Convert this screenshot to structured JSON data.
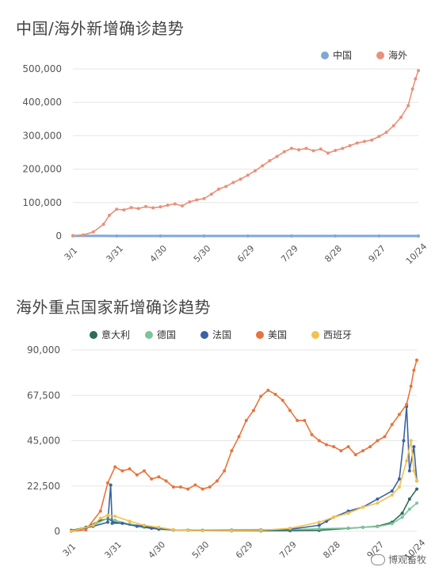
{
  "chart_data": [
    {
      "type": "line",
      "title": "中国/海外新增确诊趋势",
      "x_tick_labels": [
        "3/1",
        "3/31",
        "4/30",
        "5/30",
        "6/29",
        "7/29",
        "8/28",
        "9/27",
        "10/24"
      ],
      "x_tick_days": [
        0,
        30,
        60,
        90,
        120,
        150,
        180,
        210,
        237
      ],
      "y_tick_labels": [
        "0",
        "100,000",
        "200,000",
        "300,000",
        "400,000",
        "500,000"
      ],
      "ylim": [
        0,
        500000
      ],
      "legend_position": "top-right",
      "series": [
        {
          "name": "中国",
          "color": "#7fa8d8",
          "points": [
            [
              0,
              400
            ],
            [
              30,
              50
            ],
            [
              60,
              20
            ],
            [
              90,
              10
            ],
            [
              120,
              30
            ],
            [
              150,
              100
            ],
            [
              180,
              20
            ],
            [
              210,
              20
            ],
            [
              237,
              30
            ]
          ]
        },
        {
          "name": "海外",
          "color": "#e8917a",
          "points": [
            [
              0,
              900
            ],
            [
              7,
              3000
            ],
            [
              14,
              12000
            ],
            [
              21,
              35000
            ],
            [
              25,
              62000
            ],
            [
              30,
              80000
            ],
            [
              35,
              78000
            ],
            [
              40,
              85000
            ],
            [
              45,
              82000
            ],
            [
              50,
              88000
            ],
            [
              55,
              84000
            ],
            [
              60,
              87000
            ],
            [
              65,
              92000
            ],
            [
              70,
              96000
            ],
            [
              75,
              90000
            ],
            [
              80,
              102000
            ],
            [
              85,
              108000
            ],
            [
              90,
              112000
            ],
            [
              95,
              125000
            ],
            [
              100,
              140000
            ],
            [
              105,
              148000
            ],
            [
              110,
              160000
            ],
            [
              115,
              170000
            ],
            [
              120,
              182000
            ],
            [
              125,
              195000
            ],
            [
              130,
              210000
            ],
            [
              135,
              225000
            ],
            [
              140,
              238000
            ],
            [
              145,
              252000
            ],
            [
              150,
              262000
            ],
            [
              155,
              258000
            ],
            [
              160,
              262000
            ],
            [
              165,
              255000
            ],
            [
              170,
              260000
            ],
            [
              175,
              248000
            ],
            [
              180,
              256000
            ],
            [
              185,
              262000
            ],
            [
              190,
              270000
            ],
            [
              195,
              278000
            ],
            [
              200,
              283000
            ],
            [
              205,
              287000
            ],
            [
              210,
              298000
            ],
            [
              215,
              310000
            ],
            [
              220,
              330000
            ],
            [
              225,
              355000
            ],
            [
              230,
              390000
            ],
            [
              233,
              440000
            ],
            [
              235,
              470000
            ],
            [
              237,
              495000
            ]
          ]
        }
      ]
    },
    {
      "type": "line",
      "title": "海外重点国家新增确诊趋势",
      "x_tick_labels": [
        "3/1",
        "3/31",
        "4/30",
        "5/30",
        "6/29",
        "7/29",
        "8/28",
        "9/27",
        "10/24"
      ],
      "x_tick_days": [
        0,
        30,
        60,
        90,
        120,
        150,
        180,
        210,
        237
      ],
      "y_tick_labels": [
        "0",
        "22,500",
        "45,000",
        "67,500",
        "90,000"
      ],
      "ylim": [
        0,
        90000
      ],
      "legend_position": "top",
      "series": [
        {
          "name": "意大利",
          "color": "#2e6b5a",
          "points": [
            [
              0,
              500
            ],
            [
              10,
              2000
            ],
            [
              20,
              5500
            ],
            [
              25,
              6200
            ],
            [
              30,
              4500
            ],
            [
              40,
              3500
            ],
            [
              50,
              2500
            ],
            [
              60,
              1200
            ],
            [
              70,
              700
            ],
            [
              80,
              500
            ],
            [
              90,
              300
            ],
            [
              110,
              250
            ],
            [
              130,
              250
            ],
            [
              150,
              300
            ],
            [
              170,
              500
            ],
            [
              190,
              1500
            ],
            [
              200,
              2000
            ],
            [
              210,
              2500
            ],
            [
              220,
              4500
            ],
            [
              227,
              9000
            ],
            [
              232,
              16000
            ],
            [
              237,
              21000
            ]
          ]
        },
        {
          "name": "德国",
          "color": "#7cc49a",
          "points": [
            [
              0,
              100
            ],
            [
              15,
              3000
            ],
            [
              25,
              6500
            ],
            [
              30,
              5500
            ],
            [
              40,
              3500
            ],
            [
              50,
              2000
            ],
            [
              60,
              1000
            ],
            [
              70,
              700
            ],
            [
              80,
              600
            ],
            [
              90,
              450
            ],
            [
              110,
              500
            ],
            [
              130,
              600
            ],
            [
              150,
              800
            ],
            [
              170,
              1300
            ],
            [
              190,
              1600
            ],
            [
              200,
              2000
            ],
            [
              210,
              2300
            ],
            [
              220,
              3800
            ],
            [
              227,
              7000
            ],
            [
              232,
              11000
            ],
            [
              237,
              14000
            ]
          ]
        },
        {
          "name": "法国",
          "color": "#3a62a3",
          "points": [
            [
              0,
              100
            ],
            [
              15,
              2500
            ],
            [
              25,
              4500
            ],
            [
              27,
              23000
            ],
            [
              28,
              4000
            ],
            [
              35,
              4000
            ],
            [
              45,
              2500
            ],
            [
              55,
              1500
            ],
            [
              60,
              1200
            ],
            [
              70,
              700
            ],
            [
              80,
              500
            ],
            [
              90,
              500
            ],
            [
              110,
              600
            ],
            [
              130,
              700
            ],
            [
              150,
              1000
            ],
            [
              170,
              3000
            ],
            [
              175,
              5000
            ],
            [
              180,
              7000
            ],
            [
              190,
              10000
            ],
            [
              200,
              12000
            ],
            [
              210,
              16000
            ],
            [
              220,
              20000
            ],
            [
              225,
              26000
            ],
            [
              228,
              45000
            ],
            [
              230,
              62000
            ],
            [
              232,
              30000
            ],
            [
              235,
              42000
            ],
            [
              237,
              25000
            ]
          ]
        },
        {
          "name": "美国",
          "color": "#e8743b",
          "points": [
            [
              0,
              50
            ],
            [
              10,
              700
            ],
            [
              20,
              10000
            ],
            [
              25,
              24000
            ],
            [
              30,
              32000
            ],
            [
              35,
              30000
            ],
            [
              40,
              31000
            ],
            [
              45,
              28000
            ],
            [
              50,
              30000
            ],
            [
              55,
              26000
            ],
            [
              60,
              27000
            ],
            [
              65,
              25000
            ],
            [
              70,
              22000
            ],
            [
              75,
              22000
            ],
            [
              80,
              21000
            ],
            [
              85,
              23000
            ],
            [
              90,
              21000
            ],
            [
              95,
              22000
            ],
            [
              100,
              25000
            ],
            [
              105,
              30000
            ],
            [
              110,
              40000
            ],
            [
              115,
              47000
            ],
            [
              120,
              55000
            ],
            [
              125,
              60000
            ],
            [
              130,
              67000
            ],
            [
              135,
              70000
            ],
            [
              140,
              68000
            ],
            [
              145,
              65000
            ],
            [
              150,
              60000
            ],
            [
              155,
              55000
            ],
            [
              160,
              55000
            ],
            [
              165,
              48000
            ],
            [
              170,
              45000
            ],
            [
              175,
              43000
            ],
            [
              180,
              42000
            ],
            [
              185,
              40000
            ],
            [
              190,
              42000
            ],
            [
              195,
              38000
            ],
            [
              200,
              40000
            ],
            [
              205,
              42000
            ],
            [
              210,
              45000
            ],
            [
              215,
              47000
            ],
            [
              220,
              53000
            ],
            [
              225,
              58000
            ],
            [
              230,
              63000
            ],
            [
              233,
              72000
            ],
            [
              235,
              80000
            ],
            [
              237,
              85000
            ]
          ]
        },
        {
          "name": "西班牙",
          "color": "#f2c14e",
          "points": [
            [
              0,
              50
            ],
            [
              15,
              3000
            ],
            [
              20,
              6500
            ],
            [
              25,
              8000
            ],
            [
              30,
              7500
            ],
            [
              40,
              5000
            ],
            [
              50,
              3000
            ],
            [
              60,
              2000
            ],
            [
              70,
              800
            ],
            [
              80,
              400
            ],
            [
              90,
              300
            ],
            [
              110,
              350
            ],
            [
              130,
              500
            ],
            [
              150,
              1500
            ],
            [
              170,
              4500
            ],
            [
              180,
              7000
            ],
            [
              190,
              9000
            ],
            [
              200,
              12000
            ],
            [
              210,
              14000
            ],
            [
              220,
              18000
            ],
            [
              225,
              22000
            ],
            [
              230,
              35000
            ],
            [
              233,
              45000
            ],
            [
              235,
              30000
            ],
            [
              237,
              25000
            ]
          ]
        }
      ]
    }
  ],
  "watermark": "博观畜牧",
  "icons": [
    "wechat-icon"
  ]
}
